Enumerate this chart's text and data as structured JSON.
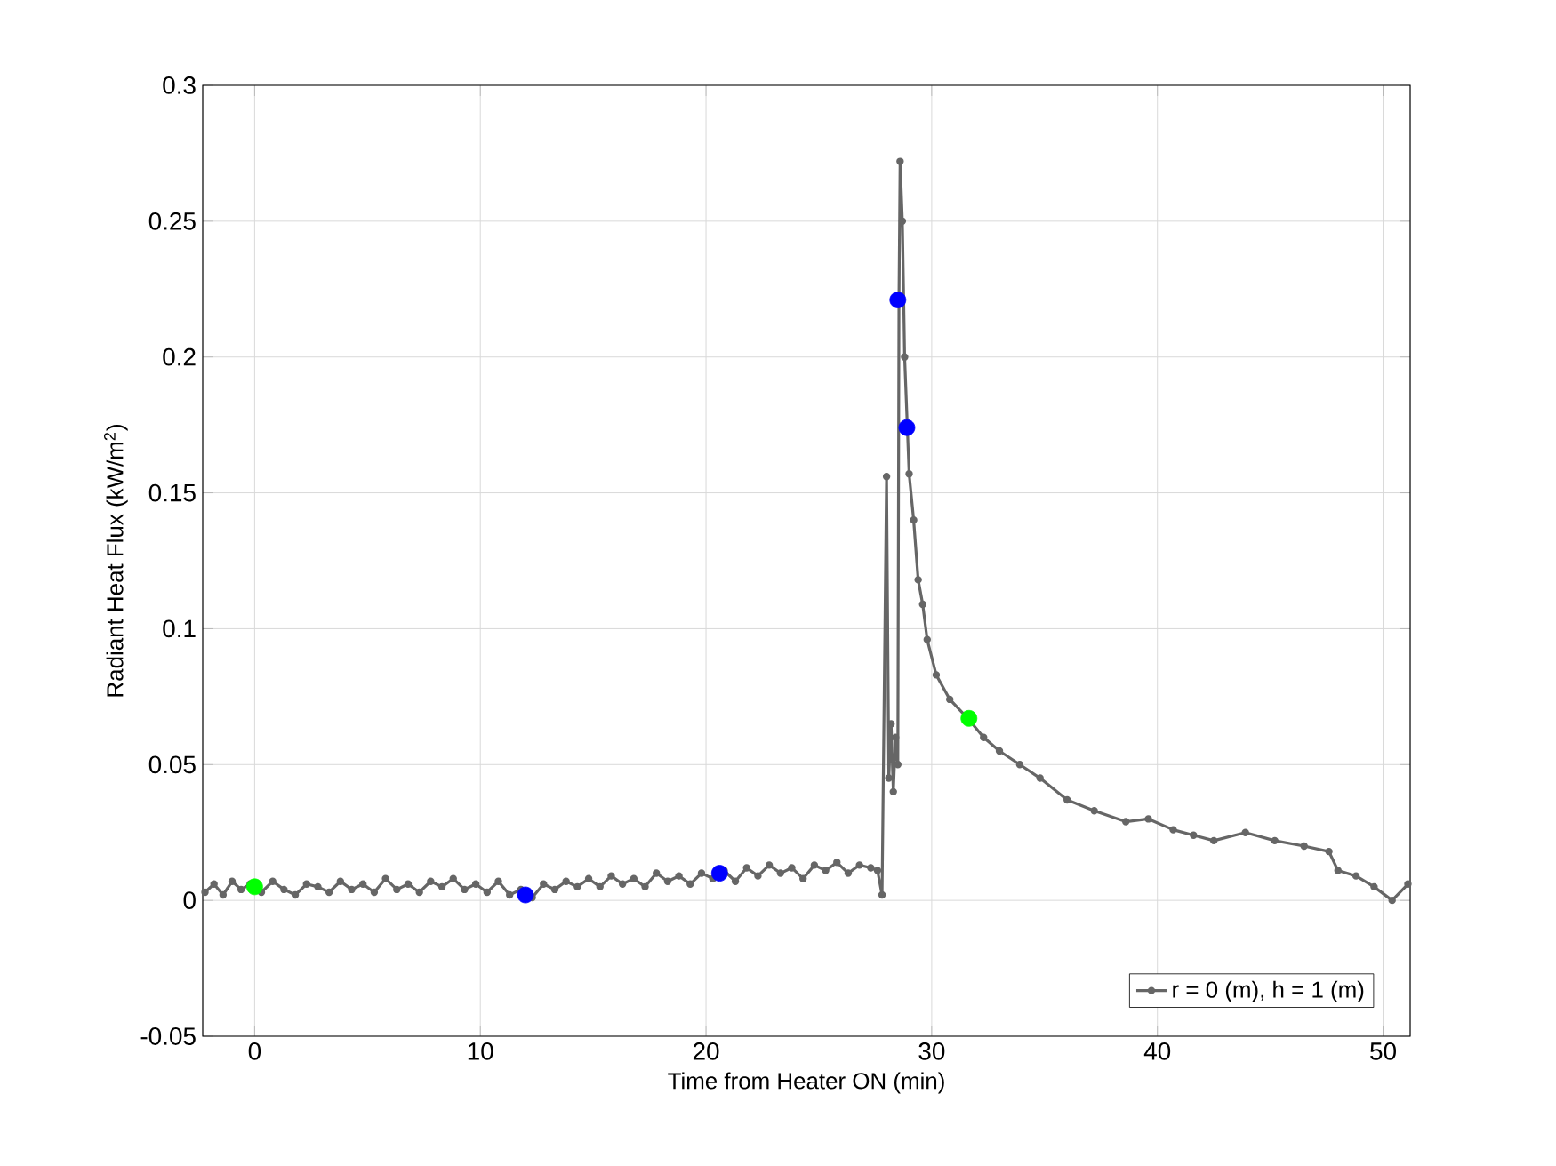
{
  "chart_data": {
    "type": "line",
    "xlabel": "Time from Heater ON (min)",
    "ylabel": "Radiant Heat Flux (kW/m$^{2}$)",
    "xlim": [
      -2.3,
      51.2
    ],
    "ylim": [
      -0.05,
      0.3
    ],
    "xticks": [
      0,
      10,
      20,
      30,
      40,
      50
    ],
    "yticks": [
      -0.05,
      0,
      0.05,
      0.1,
      0.15,
      0.2,
      0.25,
      0.3
    ],
    "grid": true,
    "legend": "bottom right",
    "marker": "circle",
    "line_style": "solid",
    "series": [
      {
        "name": "r = 0 (m), h = 1 (m)",
        "color": "#666666",
        "x": [
          -2.2,
          -1.8,
          -1.4,
          -1.0,
          -0.6,
          -0.2,
          0.3,
          0.8,
          1.3,
          1.8,
          2.3,
          2.8,
          3.3,
          3.8,
          4.3,
          4.8,
          5.3,
          5.8,
          6.3,
          6.8,
          7.3,
          7.8,
          8.3,
          8.8,
          9.3,
          9.8,
          10.3,
          10.8,
          11.3,
          11.8,
          12.3,
          12.8,
          13.3,
          13.8,
          14.3,
          14.8,
          15.3,
          15.8,
          16.3,
          16.8,
          17.3,
          17.8,
          18.3,
          18.8,
          19.3,
          19.8,
          20.3,
          20.8,
          21.3,
          21.8,
          22.3,
          22.8,
          23.3,
          23.8,
          24.3,
          24.8,
          25.3,
          25.8,
          26.3,
          26.8,
          27.3,
          27.6,
          27.8,
          28.0,
          28.1,
          28.2,
          28.3,
          28.4,
          28.5,
          28.55,
          28.6,
          28.7,
          28.8,
          28.9,
          29.0,
          29.2,
          29.4,
          29.6,
          29.8,
          30.2,
          30.8,
          31.6,
          32.3,
          33.0,
          33.9,
          34.8,
          36.0,
          37.2,
          38.6,
          39.6,
          40.7,
          41.6,
          42.5,
          43.9,
          45.2,
          46.5,
          47.6,
          48.0,
          48.8,
          49.6,
          50.4,
          51.1
        ],
        "values": [
          0.003,
          0.006,
          0.002,
          0.007,
          0.004,
          0.006,
          0.003,
          0.007,
          0.004,
          0.002,
          0.006,
          0.005,
          0.003,
          0.007,
          0.004,
          0.006,
          0.003,
          0.008,
          0.004,
          0.006,
          0.003,
          0.007,
          0.005,
          0.008,
          0.004,
          0.006,
          0.003,
          0.007,
          0.002,
          0.004,
          0.001,
          0.006,
          0.004,
          0.007,
          0.005,
          0.008,
          0.005,
          0.009,
          0.006,
          0.008,
          0.005,
          0.01,
          0.007,
          0.009,
          0.006,
          0.01,
          0.008,
          0.011,
          0.007,
          0.012,
          0.009,
          0.013,
          0.01,
          0.012,
          0.008,
          0.013,
          0.011,
          0.014,
          0.01,
          0.013,
          0.012,
          0.011,
          0.002,
          0.156,
          0.045,
          0.065,
          0.04,
          0.06,
          0.05,
          0.221,
          0.272,
          0.25,
          0.2,
          null,
          0.157,
          0.14,
          0.118,
          0.109,
          0.096,
          0.083,
          0.074,
          0.067,
          0.06,
          0.055,
          0.05,
          0.045,
          0.037,
          0.033,
          0.029,
          0.03,
          0.026,
          0.024,
          0.022,
          0.025,
          0.022,
          0.02,
          0.018,
          0.011,
          0.009,
          0.005,
          0.0,
          0.006
        ]
      },
      {
        "color": "#0000ff",
        "type": "scatter",
        "x": [
          12.0,
          20.6,
          28.5,
          28.9
        ],
        "values": [
          0.002,
          0.01,
          0.221,
          0.174
        ]
      },
      {
        "color": "#00ff00",
        "type": "scatter",
        "x": [
          0.0,
          31.65
        ],
        "values": [
          0.005,
          0.067
        ]
      }
    ]
  }
}
